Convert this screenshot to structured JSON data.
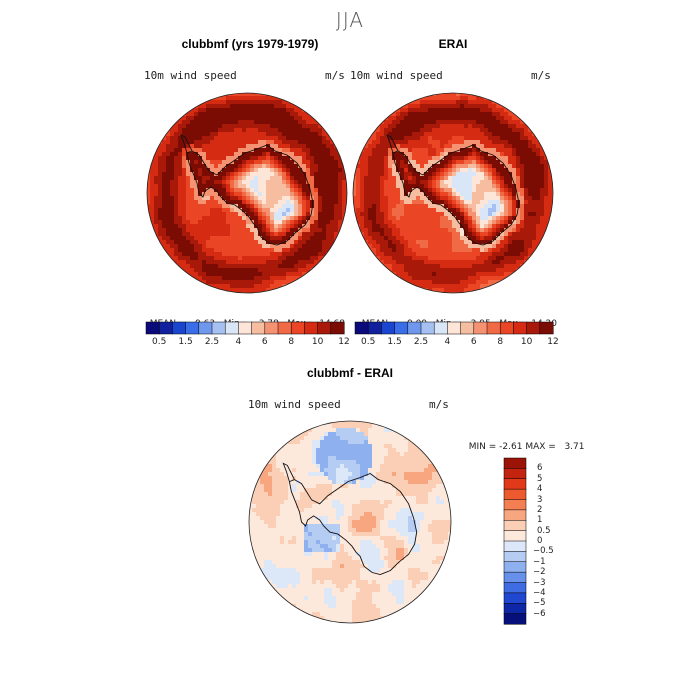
{
  "figure": {
    "title": "JJA"
  },
  "chart_data": [
    {
      "type": "heatmap",
      "title": "clubbmf (yrs 1979-1979)",
      "subtitle_left": "10m wind speed",
      "subtitle_right": "m/s",
      "stats": {
        "mean_label": "MEAN=",
        "mean": "9.63",
        "min_label": "Min=",
        "min": "3.78",
        "max_label": "Max=",
        "max": "14.68"
      },
      "projection": "south-polar-stereographic",
      "colorbar": {
        "tick_labels": [
          "0.5",
          "1.5",
          "2.5",
          "4",
          "6",
          "8",
          "10",
          "12"
        ],
        "colors": [
          "#0a0a7a",
          "#11219e",
          "#1a45cf",
          "#3a6ee8",
          "#6f97ee",
          "#a6c0f2",
          "#d8e6f8",
          "#fde6d8",
          "#f7bda1",
          "#f49272",
          "#f06a45",
          "#ea4525",
          "#d42b12",
          "#a81909",
          "#7a0c04"
        ]
      }
    },
    {
      "type": "heatmap",
      "title": "ERAI",
      "subtitle_left": "10m wind speed",
      "subtitle_right": "m/s",
      "stats": {
        "mean_label": "MEAN=",
        "mean": "9.09",
        "min_label": "Min=",
        "min": "2.95",
        "max_label": "Max=",
        "max": "14.20"
      },
      "projection": "south-polar-stereographic",
      "colorbar": {
        "tick_labels": [
          "0.5",
          "1.5",
          "2.5",
          "4",
          "6",
          "8",
          "10",
          "12"
        ],
        "colors": [
          "#0a0a7a",
          "#11219e",
          "#1a45cf",
          "#3a6ee8",
          "#6f97ee",
          "#a6c0f2",
          "#d8e6f8",
          "#fde6d8",
          "#f7bda1",
          "#f49272",
          "#f06a45",
          "#ea4525",
          "#d42b12",
          "#a81909",
          "#7a0c04"
        ]
      }
    },
    {
      "type": "heatmap",
      "title": "clubbmf - ERAI",
      "subtitle_left": "10m wind speed",
      "subtitle_right": "m/s",
      "stats": {
        "min_label": "MIN =",
        "min": "-2.61",
        "max_label": "MAX =",
        "max": "3.71"
      },
      "projection": "south-polar-stereographic",
      "colorbar": {
        "orientation": "vertical",
        "tick_labels": [
          "6",
          "5",
          "4",
          "3",
          "2",
          "1",
          "0.5",
          "0",
          "-0.5",
          "-1",
          "-2",
          "-3",
          "-4",
          "-5",
          "-6"
        ],
        "colors": [
          "#9c1408",
          "#c32410",
          "#e03a1a",
          "#ee5a30",
          "#f47f52",
          "#f7a680",
          "#fbcfb5",
          "#fde8dc",
          "#dce8f8",
          "#b6cdf3",
          "#8fb0ef",
          "#6690ea",
          "#3f6ce3",
          "#1f47cf",
          "#0d27a6",
          "#06107a"
        ]
      }
    }
  ]
}
